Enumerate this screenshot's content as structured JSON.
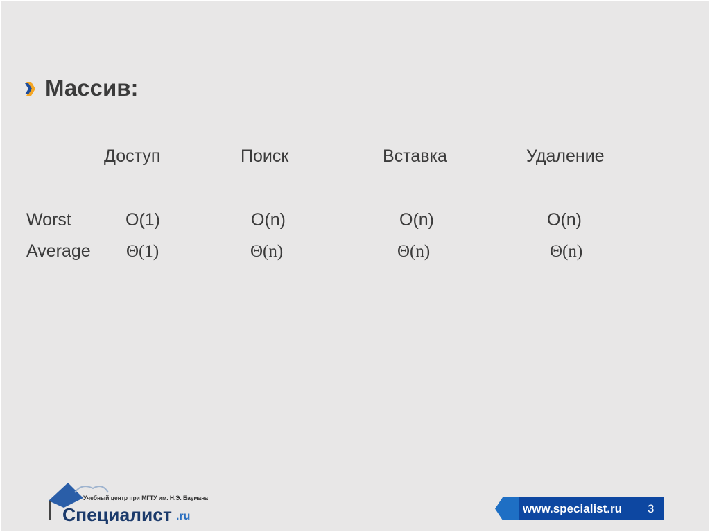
{
  "slide": {
    "title": "Массив:",
    "columns": [
      "Доступ",
      "Поиск",
      "Вставка",
      "Удаление"
    ],
    "rows": [
      {
        "label": "Worst",
        "values": [
          "O(1)",
          "O(n)",
          "O(n)",
          "O(n)"
        ]
      },
      {
        "label": "Average",
        "values": [
          "Θ(1)",
          "Θ(n)",
          "Θ(n)",
          "Θ(n)"
        ]
      }
    ]
  },
  "footer": {
    "logo_tagline": "Учебный центр при МГТУ им. Н.Э. Баумана",
    "logo_name": "Специалист",
    "logo_suffix": ".ru",
    "url": "www.specialist.ru",
    "page_number": "3"
  },
  "colors": {
    "accent_blue": "#0d47a1",
    "accent_orange": "#f5a623",
    "text": "#3b3b3b"
  }
}
